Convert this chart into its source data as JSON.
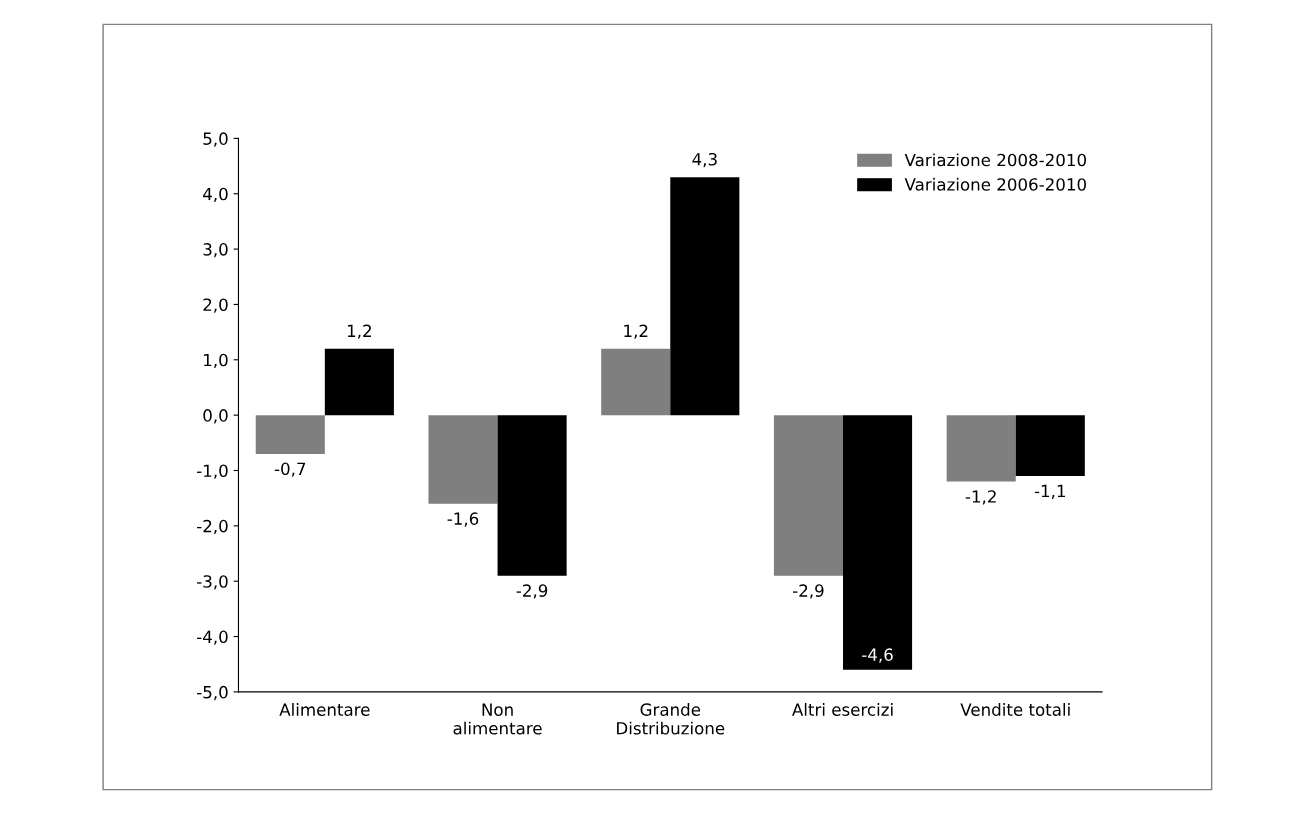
{
  "chart_data": {
    "type": "bar",
    "categories": [
      "Alimentare",
      "Non\nalimentare",
      "Grande\nDistribuzione",
      "Altri esercizi",
      "Vendite totali"
    ],
    "series": [
      {
        "name": "Variazione 2008-2010",
        "color": "#7f7f7f",
        "values": [
          -0.7,
          -1.6,
          1.2,
          -2.9,
          -1.2
        ],
        "value_labels": [
          "-0,7",
          "-1,6",
          "1,2",
          "-2,9",
          "-1,2"
        ]
      },
      {
        "name": "Variazione 2006-2010",
        "color": "#000000",
        "values": [
          1.2,
          -2.9,
          4.3,
          -4.6,
          -1.1
        ],
        "value_labels": [
          "1,2",
          "-2,9",
          "4,3",
          "-4,6",
          "-1,1"
        ]
      }
    ],
    "ylim": [
      -5,
      5
    ],
    "yticks": [
      {
        "value": -5,
        "label": "-5,0"
      },
      {
        "value": -4,
        "label": "-4,0"
      },
      {
        "value": -3,
        "label": "-3,0"
      },
      {
        "value": -2,
        "label": "-2,0"
      },
      {
        "value": -1,
        "label": "-1,0"
      },
      {
        "value": 0,
        "label": "0,0"
      },
      {
        "value": 1,
        "label": "1,0"
      },
      {
        "value": 2,
        "label": "2,0"
      },
      {
        "value": 3,
        "label": "3,0"
      },
      {
        "value": 4,
        "label": "4,0"
      },
      {
        "value": 5,
        "label": "5,0"
      }
    ],
    "legend": "top right"
  }
}
